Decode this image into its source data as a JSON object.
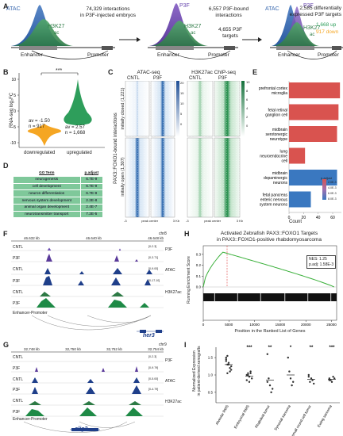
{
  "panelA": {
    "step1": {
      "atac": "ATAC",
      "h3k27": "H3K27",
      "ac": "ac",
      "enhancer": "Enhancer",
      "promoter": "Promoter",
      "text1": "74,329 interactions",
      "text2": "in P3F-injected embryos"
    },
    "step2": {
      "p3f": "P3F",
      "h3k27": "H3K27",
      "ac": "ac",
      "enhancer": "Enhancer",
      "promoter": "Promoter",
      "text1": "6,557 P3F-bound",
      "text2": "interactions",
      "text3": "4,655 P3F",
      "text4": "targets"
    },
    "step3": {
      "atac": "ATAC",
      "p3f": "P3F",
      "h3k27": "H3K27",
      "ac": "ac",
      "enhancer": "Enhancer",
      "promoter": "Promoter",
      "text1": "2,585 differentially",
      "text2": "expressed P3F targets",
      "up": "1,668 up",
      "down": "917 down"
    }
  },
  "panelB": {
    "ylabel": "RNA-seq log₂FC",
    "sig": "***",
    "down": {
      "label": "downregulated",
      "av": "av = -1.50",
      "n": "n = 917"
    },
    "up": {
      "label": "upregulated",
      "av": "av = 2.57",
      "n": "n = 1,668"
    },
    "colors": {
      "down": "#f5a623",
      "up": "#2e9e5b"
    },
    "ticks": [
      "10",
      "5",
      "0",
      "-5",
      "-10"
    ]
  },
  "panelC": {
    "atac_title": "ATAC-seq",
    "h3k_title": "H3K27ac ChIP-seq",
    "cntl": "CNTL",
    "p3f": "P3F",
    "rowlabel": "PAX3::FOXO1-bound interactions",
    "closed": "initially closed (1,221)",
    "open": "initially open (1,307)",
    "xticks": [
      "-3",
      "peak center",
      "3 Kb"
    ],
    "atac_scale": [
      "20",
      "15",
      "10",
      "5",
      "0"
    ],
    "h3k_scale": [
      "10",
      "8",
      "6",
      "4",
      "2",
      "0"
    ]
  },
  "panelD": {
    "col1": "GO Term",
    "col2": "p.adjust",
    "rows": [
      {
        "term": "neurogenesis",
        "p": "6.7E-9"
      },
      {
        "term": "cell development",
        "p": "6.7E-9"
      },
      {
        "term": "neuron differentiation",
        "p": "6.7E-9"
      },
      {
        "term": "nervous system development",
        "p": "2.2E-8"
      },
      {
        "term": "animal organ development",
        "p": "2.4E-7"
      },
      {
        "term": "neurotransmitter transport",
        "p": "7.2E-5"
      }
    ]
  },
  "panelE": {
    "xlabel": "Count",
    "legend_title": "p.adjust",
    "legend_ticks": [
      "2.0E-3",
      "4.0E-3",
      "6.0E-3",
      "8.0E-3"
    ],
    "xticks": [
      "0",
      "20",
      "40",
      "60"
    ],
    "bars": [
      {
        "label": "prefrontal cortex microglia",
        "lines": [
          "prefrontal cortex",
          "microglia"
        ],
        "count": 70,
        "color": "#d9534f"
      },
      {
        "label": "fetal retinal ganglion cell",
        "lines": [
          "fetal retinal",
          "ganglion cell"
        ],
        "count": 68,
        "color": "#d9534f"
      },
      {
        "label": "midbrain serotonergic neurotype",
        "lines": [
          "midbrain",
          "serotonergic",
          "neurotype"
        ],
        "count": 66,
        "color": "#d9534f"
      },
      {
        "label": "lung neuroendocrine cell",
        "lines": [
          "lung",
          "neuroendocrine",
          "cell"
        ],
        "count": 22,
        "color": "#d9534f"
      },
      {
        "label": "midbrain dopaminergic neurons",
        "lines": [
          "midbrain",
          "dopaminergic",
          "neurons"
        ],
        "count": 66,
        "color": "#3a78c0"
      },
      {
        "label": "fetal pancreas enteric nervous system neurons",
        "lines": [
          "fetal pancreas",
          "enteric nervous",
          "system neurons"
        ],
        "count": 30,
        "color": "#3a78c0"
      }
    ]
  },
  "panelF": {
    "chr": "chr8",
    "coords": [
      "46.632 kb",
      "46.640 kb",
      "46.648 kb"
    ],
    "tracks": [
      "CNTL",
      "P3F",
      "CNTL",
      "P3F",
      "CNTL",
      "P3F"
    ],
    "side1": "P3F",
    "side2": "ATAC",
    "side3": "H3K27ac",
    "ep": "Enhancer-Promoter",
    "gene": "her3",
    "scales": [
      "[0-2.3]",
      "[0-3.71]",
      "[0-9.00]",
      "[0-17.10]"
    ]
  },
  "panelG": {
    "chr": "chr9",
    "coords": [
      "32,748 kb",
      "32,750 kb",
      "32,752 kb",
      "32,754 kb"
    ],
    "tracks": [
      "CNTL",
      "P3F",
      "CNTL",
      "P3F",
      "CNTL",
      "P3F"
    ],
    "side1": "P3F",
    "side2": "ATAC",
    "side3": "H3K27ac",
    "ep": "Enhancer-Promoter",
    "gene": "olig2",
    "scales": [
      "[0-2.3]",
      "[0-9.79]",
      "[0-5.00]",
      "[0-4.79]"
    ]
  },
  "panelH": {
    "title1": "Activated Zebrafish PAX3::FOXO1 Targets",
    "title2": "in PAX3::FOXO1-positive rhabdomyosarcoma",
    "ylabel": "Running Enrichment Score",
    "xlabel": "Position in the Ranked List of Genes",
    "nes": "NES: 1.25",
    "padj": "p.adj: 1.58E-3",
    "xticks": [
      "0",
      "5000",
      "10000",
      "15000",
      "20000",
      "25000"
    ],
    "yticks": [
      "0.3",
      "0.2",
      "0.1",
      "0.0"
    ]
  },
  "panelI": {
    "ylabel": "Normalized Expression\nin patient-derived xenografts",
    "ylabel1": "Normalized Expression",
    "ylabel2": "in patient-derived xenografts",
    "yticks": [
      "1.5",
      "1.0",
      "0.5"
    ],
    "groups": [
      {
        "name": "Alveolar RMS",
        "sig": ""
      },
      {
        "name": "Embryonal RMS",
        "sig": "***"
      },
      {
        "name": "Rhabdoid tumor",
        "sig": "**"
      },
      {
        "name": "Synovial sarcoma",
        "sig": "*"
      },
      {
        "name": "Desmoplastic small round cell tumor",
        "sig": "**"
      },
      {
        "name": "Ewing sarcoma",
        "sig": "***"
      }
    ]
  }
}
